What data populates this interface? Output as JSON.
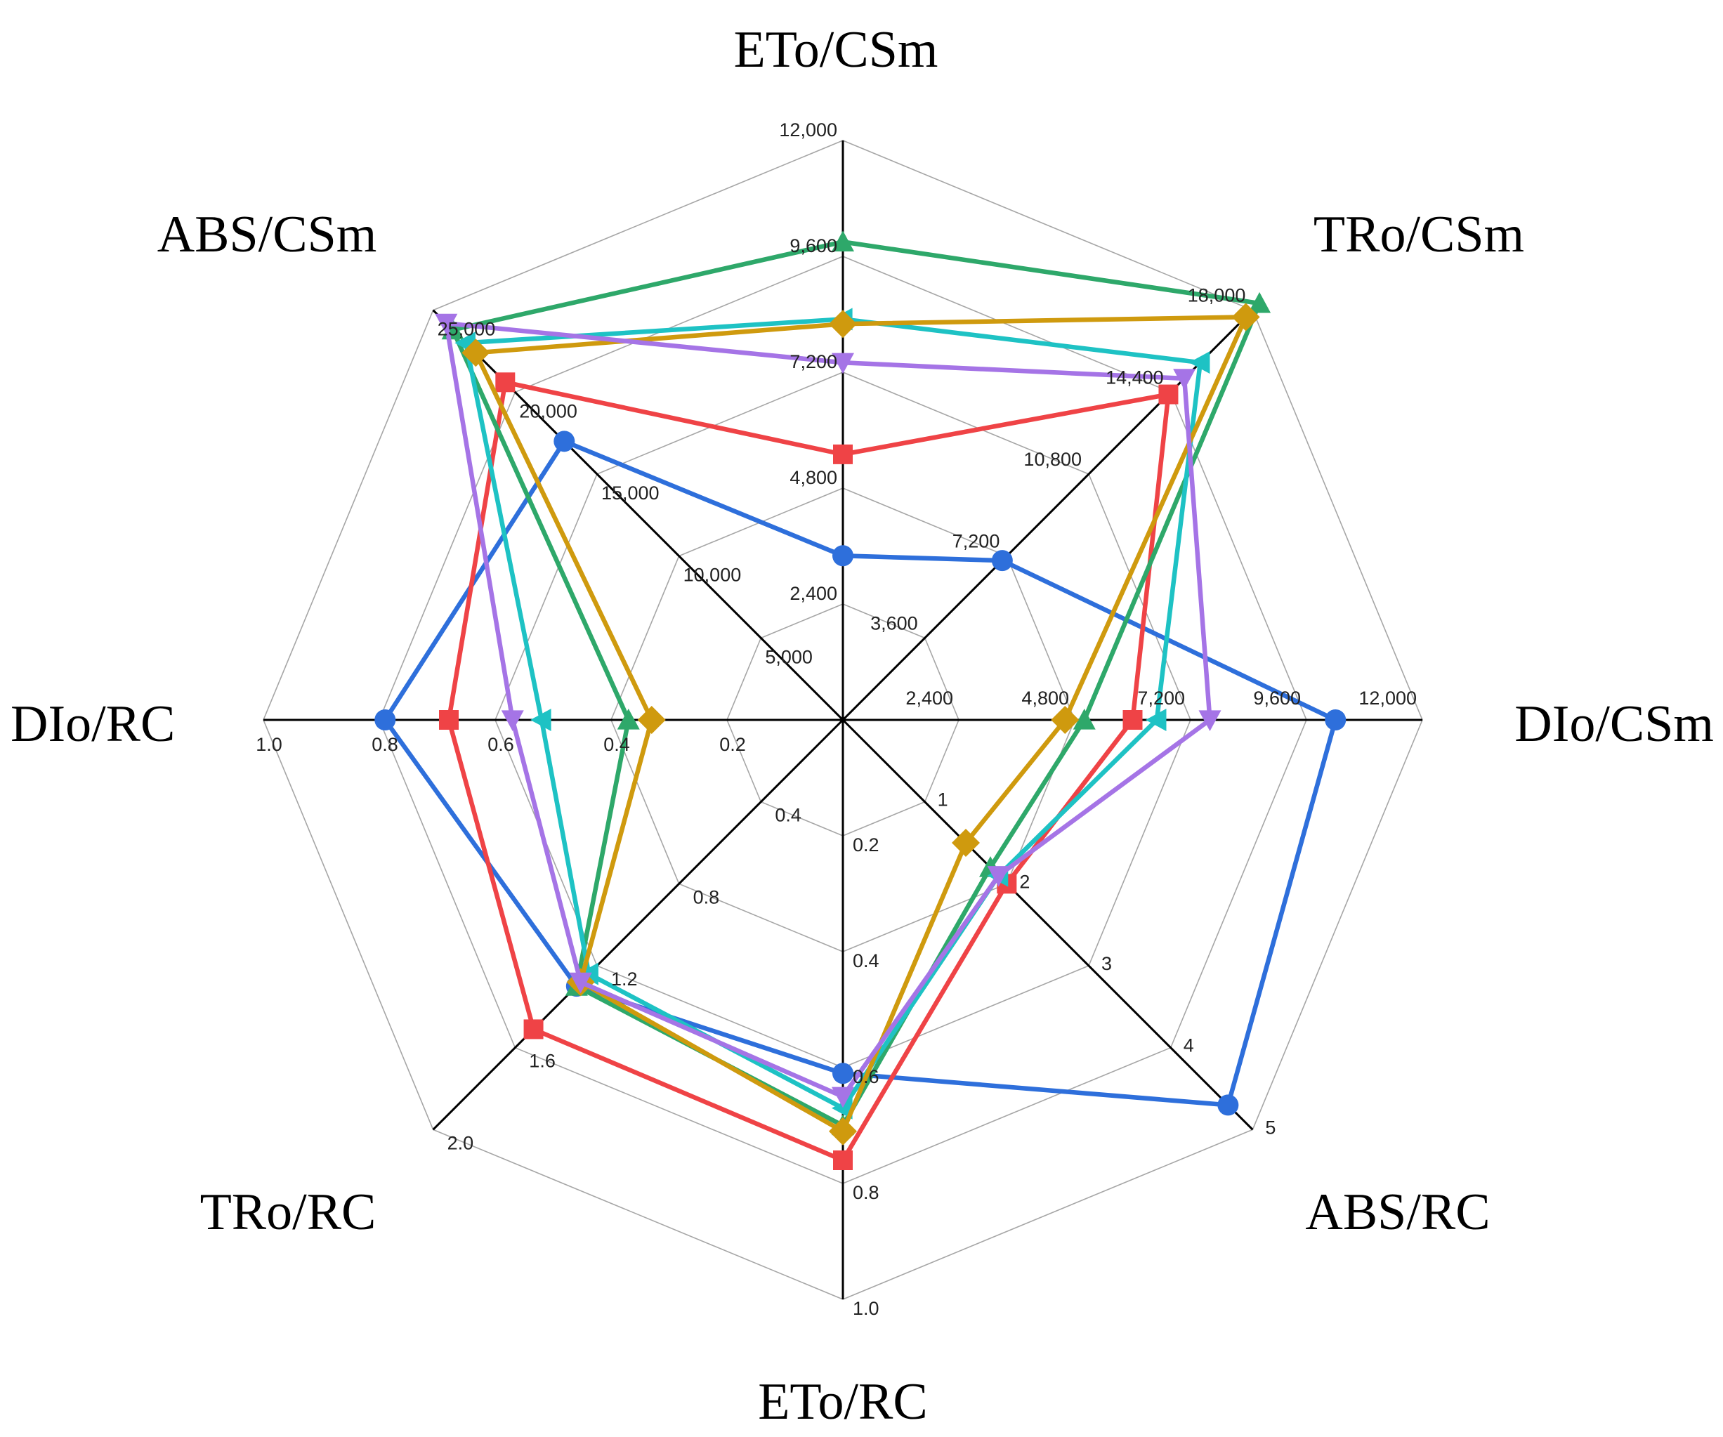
{
  "chart_data": {
    "type": "radar",
    "axes": [
      {
        "key": "ETo/CSm",
        "label": "ETo/CSm",
        "max": 12000,
        "ticks": [
          "2,400",
          "4,800",
          "7,200",
          "9,600",
          "12,000"
        ]
      },
      {
        "key": "TRo/CSm",
        "label": "TRo/CSm",
        "max": 18000,
        "ticks": [
          "3,600",
          "7,200",
          "10,800",
          "14,400",
          "18,000"
        ]
      },
      {
        "key": "DIo/CSm",
        "label": "DIo/CSm",
        "max": 12000,
        "ticks": [
          "2,400",
          "4,800",
          "7,200",
          "9,600",
          "12,000"
        ]
      },
      {
        "key": "ABS/RC",
        "label": "ABS/RC",
        "max": 5,
        "ticks": [
          "1",
          "2",
          "3",
          "4",
          "5"
        ]
      },
      {
        "key": "ETo/RC",
        "label": "ETo/RC",
        "max": 1.0,
        "ticks": [
          "0.2",
          "0.4",
          "0.6",
          "0.8",
          "1.0"
        ]
      },
      {
        "key": "TRo/RC",
        "label": "TRo/RC",
        "max": 2.0,
        "ticks": [
          "0.4",
          "0.8",
          "1.2",
          "1.6",
          "2.0"
        ]
      },
      {
        "key": "DIo/RC",
        "label": "DIo/RC",
        "max": 1.0,
        "ticks": [
          "0.2",
          "0.4",
          "0.6",
          "0.8",
          "1.0"
        ]
      },
      {
        "key": "ABS/CSm",
        "label": "ABS/CSm",
        "max": 25000,
        "ticks": [
          "5,000",
          "10,000",
          "15,000",
          "20,000",
          "25,000"
        ]
      }
    ],
    "series": [
      {
        "marker": "circle",
        "color": "#2e6fdb",
        "values": [
          3400,
          7000,
          10200,
          4.7,
          0.61,
          1.3,
          0.79,
          17000
        ]
      },
      {
        "marker": "square",
        "color": "#ef4346",
        "values": [
          5500,
          14300,
          6000,
          2.0,
          0.76,
          1.51,
          0.68,
          20600
        ]
      },
      {
        "marker": "triangle-up",
        "color": "#2ea86a",
        "values": [
          9900,
          18300,
          5000,
          1.8,
          0.7,
          1.3,
          0.37,
          23800
        ]
      },
      {
        "marker": "triangle-left",
        "color": "#1ec2c4",
        "values": [
          8300,
          15700,
          6500,
          1.9,
          0.67,
          1.24,
          0.52,
          23000
        ]
      },
      {
        "marker": "diamond",
        "color": "#cf9a0e",
        "values": [
          8200,
          17700,
          4600,
          1.5,
          0.71,
          1.28,
          0.33,
          22400
        ]
      },
      {
        "marker": "triangle-down",
        "color": "#a574e6",
        "values": [
          7400,
          15000,
          7600,
          1.9,
          0.65,
          1.28,
          0.57,
          24200
        ]
      }
    ]
  }
}
